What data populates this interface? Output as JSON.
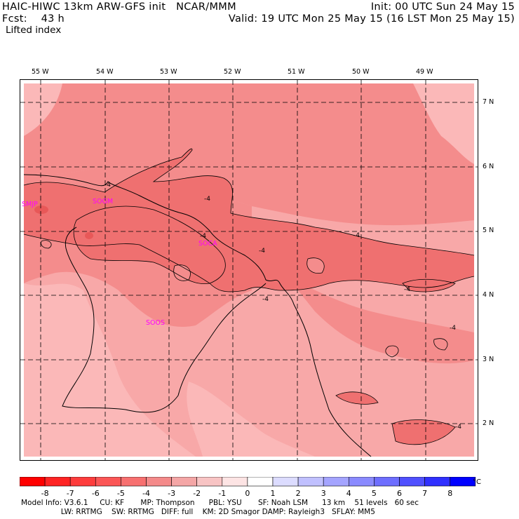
{
  "header": {
    "line1_left": "HAIC-HIWC 13km ARW-GFS init   NCAR/MMM",
    "line1_right": "Init: 00 UTC Sun 24 May 15",
    "line2_left": "Fcst:    43 h",
    "line2_right": "Valid: 19 UTC Mon 25 May 15 (16 LST Mon 25 May 15)",
    "field_name": "Lifted index"
  },
  "map": {
    "lon_labels": [
      "55 W",
      "54 W",
      "53 W",
      "52 W",
      "51 W",
      "50 W",
      "49 W"
    ],
    "lat_labels": [
      "7 N",
      "6 N",
      "5 N",
      "4 N",
      "3 N",
      "2 N"
    ],
    "stations": [
      "SMJP",
      "SOGM",
      "SOCA",
      "SOOS"
    ],
    "contour_labels": [
      "-4",
      "-4",
      "-4",
      "-4",
      "-4",
      "-4",
      "-4",
      "-4",
      "-4"
    ],
    "colors": {
      "very_light": "#fbb8b8",
      "light": "#f8a8a8",
      "medium": "#f48c8c",
      "medium_dark": "#ef7070",
      "dark": "#e85858",
      "station": "#ff00ff"
    }
  },
  "colorbar": {
    "labels": [
      "-8",
      "-7",
      "-6",
      "-5",
      "-4",
      "-3",
      "-2",
      "-1",
      "0",
      "1",
      "2",
      "3",
      "4",
      "5",
      "6",
      "7",
      "8"
    ],
    "unit": "°C",
    "colors": [
      "#ff0000",
      "#ff2424",
      "#fe3c3c",
      "#fb5656",
      "#f77070",
      "#f48a8a",
      "#f4a6a6",
      "#f8c4c4",
      "#fde4e4",
      "#ffffff",
      "#dcdcff",
      "#c0c0ff",
      "#a4a4ff",
      "#8a8aff",
      "#6e6eff",
      "#5050ff",
      "#3030ff",
      "#0000ff"
    ]
  },
  "model_info": {
    "line1": "Model Info: V3.6.1     CU: KF       MP: Thompson      PBL: YSU       SF: Noah LSM      13 km    51 levels   60 sec",
    "line2": "                 LW: RRTMG    SW: RRTMG   DIFF: full    KM: 2D Smagor DAMP: Rayleigh3   SFLAY: MM5"
  }
}
